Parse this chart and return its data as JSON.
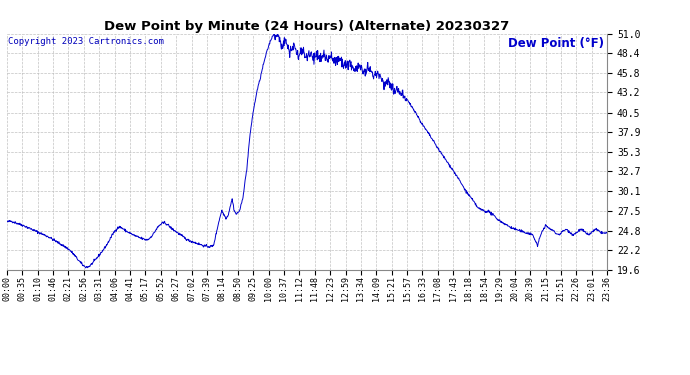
{
  "title": "Dew Point by Minute (24 Hours) (Alternate) 20230327",
  "copyright": "Copyright 2023 Cartronics.com",
  "legend_label": "Dew Point (°F)",
  "line_color": "#0000cc",
  "legend_color": "#0000cc",
  "copyright_color": "#0000bb",
  "bg_color": "#ffffff",
  "plot_bg_color": "#ffffff",
  "grid_color": "#bbbbbb",
  "title_color": "#000000",
  "yticks": [
    19.6,
    22.2,
    24.8,
    27.5,
    30.1,
    32.7,
    35.3,
    37.9,
    40.5,
    43.2,
    45.8,
    48.4,
    51.0
  ],
  "ylim": [
    19.6,
    51.0
  ],
  "xtick_labels": [
    "00:00",
    "00:35",
    "01:10",
    "01:46",
    "02:21",
    "02:56",
    "03:31",
    "04:06",
    "04:41",
    "05:17",
    "05:52",
    "06:27",
    "07:02",
    "07:39",
    "08:14",
    "08:50",
    "09:25",
    "10:00",
    "10:37",
    "11:12",
    "11:48",
    "12:23",
    "12:59",
    "13:34",
    "14:09",
    "15:21",
    "15:57",
    "16:33",
    "17:08",
    "17:43",
    "18:18",
    "18:54",
    "19:29",
    "20:04",
    "20:39",
    "21:15",
    "21:51",
    "22:26",
    "23:01",
    "23:36"
  ],
  "keypoints": [
    [
      0,
      26.0
    ],
    [
      10,
      26.1
    ],
    [
      25,
      25.8
    ],
    [
      40,
      25.5
    ],
    [
      60,
      25.0
    ],
    [
      80,
      24.5
    ],
    [
      100,
      24.0
    ],
    [
      115,
      23.5
    ],
    [
      130,
      23.0
    ],
    [
      145,
      22.5
    ],
    [
      155,
      22.0
    ],
    [
      163,
      21.5
    ],
    [
      170,
      21.0
    ],
    [
      178,
      20.5
    ],
    [
      183,
      20.2
    ],
    [
      188,
      20.0
    ],
    [
      193,
      20.0
    ],
    [
      198,
      20.1
    ],
    [
      210,
      20.8
    ],
    [
      220,
      21.5
    ],
    [
      230,
      22.2
    ],
    [
      240,
      23.0
    ],
    [
      248,
      23.8
    ],
    [
      255,
      24.5
    ],
    [
      262,
      25.0
    ],
    [
      268,
      25.3
    ],
    [
      272,
      25.3
    ],
    [
      278,
      25.1
    ],
    [
      285,
      24.8
    ],
    [
      295,
      24.5
    ],
    [
      305,
      24.2
    ],
    [
      318,
      23.9
    ],
    [
      328,
      23.7
    ],
    [
      335,
      23.6
    ],
    [
      340,
      23.7
    ],
    [
      345,
      24.0
    ],
    [
      350,
      24.3
    ],
    [
      358,
      25.0
    ],
    [
      365,
      25.5
    ],
    [
      372,
      25.8
    ],
    [
      378,
      25.9
    ],
    [
      383,
      25.7
    ],
    [
      388,
      25.5
    ],
    [
      393,
      25.2
    ],
    [
      398,
      25.0
    ],
    [
      403,
      24.8
    ],
    [
      408,
      24.6
    ],
    [
      413,
      24.4
    ],
    [
      418,
      24.2
    ],
    [
      423,
      24.0
    ],
    [
      428,
      23.8
    ],
    [
      433,
      23.6
    ],
    [
      438,
      23.5
    ],
    [
      443,
      23.4
    ],
    [
      448,
      23.3
    ],
    [
      453,
      23.2
    ],
    [
      458,
      23.1
    ],
    [
      463,
      23.0
    ],
    [
      468,
      22.9
    ],
    [
      473,
      22.8
    ],
    [
      485,
      22.7
    ],
    [
      495,
      22.8
    ],
    [
      508,
      26.0
    ],
    [
      515,
      27.5
    ],
    [
      520,
      27.0
    ],
    [
      525,
      26.5
    ],
    [
      530,
      26.8
    ],
    [
      535,
      28.0
    ],
    [
      540,
      29.0
    ],
    [
      545,
      27.5
    ],
    [
      550,
      27.0
    ],
    [
      558,
      27.5
    ],
    [
      565,
      29.0
    ],
    [
      570,
      31.0
    ],
    [
      575,
      33.0
    ],
    [
      580,
      36.0
    ],
    [
      585,
      38.5
    ],
    [
      590,
      40.5
    ],
    [
      595,
      42.0
    ],
    [
      600,
      43.5
    ],
    [
      607,
      45.0
    ],
    [
      613,
      46.5
    ],
    [
      620,
      48.0
    ],
    [
      628,
      49.5
    ],
    [
      635,
      50.5
    ],
    [
      640,
      51.0
    ],
    [
      645,
      51.0
    ],
    [
      648,
      50.8
    ],
    [
      652,
      50.5
    ],
    [
      656,
      49.8
    ],
    [
      660,
      49.2
    ],
    [
      664,
      49.8
    ],
    [
      668,
      50.2
    ],
    [
      672,
      49.5
    ],
    [
      676,
      49.0
    ],
    [
      680,
      48.5
    ],
    [
      684,
      49.0
    ],
    [
      688,
      49.5
    ],
    [
      692,
      48.8
    ],
    [
      696,
      48.3
    ],
    [
      700,
      48.0
    ],
    [
      704,
      48.5
    ],
    [
      708,
      49.0
    ],
    [
      712,
      48.5
    ],
    [
      716,
      48.0
    ],
    [
      720,
      47.8
    ],
    [
      724,
      48.2
    ],
    [
      728,
      48.5
    ],
    [
      732,
      48.0
    ],
    [
      736,
      47.5
    ],
    [
      740,
      48.0
    ],
    [
      744,
      48.3
    ],
    [
      748,
      48.0
    ],
    [
      752,
      47.7
    ],
    [
      756,
      48.0
    ],
    [
      760,
      48.2
    ],
    [
      764,
      47.8
    ],
    [
      768,
      47.5
    ],
    [
      772,
      47.8
    ],
    [
      776,
      48.0
    ],
    [
      780,
      47.7
    ],
    [
      784,
      47.3
    ],
    [
      790,
      47.5
    ],
    [
      796,
      47.8
    ],
    [
      802,
      47.2
    ],
    [
      808,
      46.8
    ],
    [
      814,
      47.0
    ],
    [
      820,
      47.2
    ],
    [
      826,
      46.8
    ],
    [
      832,
      46.3
    ],
    [
      838,
      46.5
    ],
    [
      844,
      46.8
    ],
    [
      850,
      46.2
    ],
    [
      856,
      45.8
    ],
    [
      862,
      46.0
    ],
    [
      868,
      46.2
    ],
    [
      874,
      45.8
    ],
    [
      880,
      45.3
    ],
    [
      885,
      45.5
    ],
    [
      890,
      45.8
    ],
    [
      895,
      45.2
    ],
    [
      900,
      44.8
    ],
    [
      905,
      44.2
    ],
    [
      910,
      44.5
    ],
    [
      915,
      44.8
    ],
    [
      920,
      44.2
    ],
    [
      925,
      43.8
    ],
    [
      930,
      43.2
    ],
    [
      935,
      43.5
    ],
    [
      938,
      43.8
    ],
    [
      941,
      43.3
    ],
    [
      944,
      43.0
    ],
    [
      948,
      43.2
    ],
    [
      952,
      43.0
    ],
    [
      956,
      42.5
    ],
    [
      962,
      42.0
    ],
    [
      968,
      41.5
    ],
    [
      975,
      41.0
    ],
    [
      985,
      40.0
    ],
    [
      995,
      39.0
    ],
    [
      1010,
      37.8
    ],
    [
      1025,
      36.5
    ],
    [
      1040,
      35.2
    ],
    [
      1055,
      34.0
    ],
    [
      1070,
      32.8
    ],
    [
      1085,
      31.5
    ],
    [
      1100,
      30.1
    ],
    [
      1115,
      29.0
    ],
    [
      1130,
      27.8
    ],
    [
      1143,
      27.5
    ],
    [
      1148,
      27.3
    ],
    [
      1153,
      27.5
    ],
    [
      1158,
      27.2
    ],
    [
      1163,
      27.0
    ],
    [
      1168,
      26.8
    ],
    [
      1173,
      26.5
    ],
    [
      1178,
      26.3
    ],
    [
      1185,
      26.0
    ],
    [
      1192,
      25.8
    ],
    [
      1200,
      25.5
    ],
    [
      1210,
      25.2
    ],
    [
      1220,
      25.0
    ],
    [
      1230,
      24.8
    ],
    [
      1240,
      24.6
    ],
    [
      1250,
      24.5
    ],
    [
      1260,
      24.3
    ],
    [
      1267,
      23.5
    ],
    [
      1272,
      22.8
    ],
    [
      1278,
      24.0
    ],
    [
      1285,
      25.0
    ],
    [
      1292,
      25.5
    ],
    [
      1298,
      25.2
    ],
    [
      1304,
      25.0
    ],
    [
      1310,
      24.8
    ],
    [
      1316,
      24.5
    ],
    [
      1322,
      24.3
    ],
    [
      1328,
      24.5
    ],
    [
      1334,
      24.8
    ],
    [
      1340,
      25.0
    ],
    [
      1346,
      24.8
    ],
    [
      1352,
      24.5
    ],
    [
      1358,
      24.3
    ],
    [
      1364,
      24.5
    ],
    [
      1370,
      24.8
    ],
    [
      1376,
      25.0
    ],
    [
      1382,
      24.8
    ],
    [
      1388,
      24.5
    ],
    [
      1394,
      24.3
    ],
    [
      1400,
      24.5
    ],
    [
      1406,
      24.8
    ],
    [
      1412,
      25.0
    ],
    [
      1418,
      24.8
    ],
    [
      1424,
      24.6
    ],
    [
      1430,
      24.5
    ],
    [
      1439,
      24.5
    ]
  ]
}
